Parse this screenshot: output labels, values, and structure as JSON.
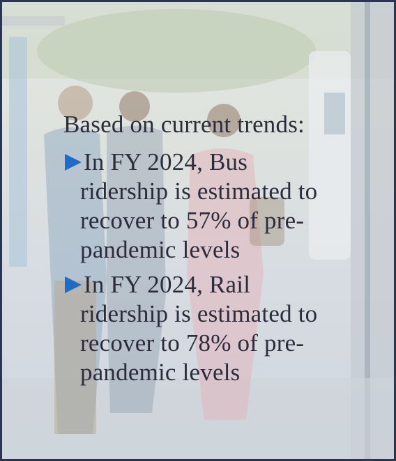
{
  "heading": "Based on current trends:",
  "bullets": [
    {
      "lines": [
        "In FY 2024, Bus",
        "ridership is estimated to",
        "recover to 57% of pre-",
        "pandemic levels"
      ]
    },
    {
      "lines": [
        "In FY 2024, Rail",
        "ridership is estimated to",
        "recover to 78% of pre-",
        "pandemic levels"
      ]
    }
  ]
}
